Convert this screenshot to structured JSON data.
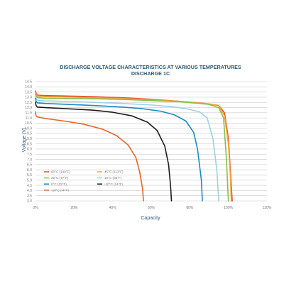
{
  "chart_data": {
    "type": "line",
    "title": "DISCHARGE VOLTAGE CHARACTERISTICS AT VARIOUS TEMPERATURES",
    "subtitle": "DISCHARGE 1C",
    "xlabel": "Capacity",
    "ylabel": "Voltage (V)",
    "xlim": [
      0,
      120
    ],
    "ylim": [
      3.0,
      14.5
    ],
    "x_ticks": [
      "0%",
      "20%",
      "40%",
      "60%",
      "80%",
      "100%",
      "120%"
    ],
    "y_ticks": [
      "3.0",
      "3.5",
      "4.0",
      "4.5",
      "5.0",
      "5.5",
      "6.0",
      "6.5",
      "7.0",
      "7.5",
      "8.0",
      "8.5",
      "9.0",
      "9.5",
      "10.0",
      "10.5",
      "11.0",
      "11.5",
      "12.0",
      "12.5",
      "13.0",
      "13.5",
      "14.0",
      "14.5"
    ],
    "grid": true,
    "legend_position": "bottom-left",
    "series": [
      {
        "name": "60°C (140°F)",
        "color": "#e74c2c",
        "x": [
          0,
          0.3,
          1,
          5,
          15,
          30,
          45,
          60,
          75,
          85,
          90,
          95,
          98,
          100,
          101,
          102
        ],
        "y": [
          13.6,
          13.4,
          13.2,
          13.15,
          13.12,
          13.05,
          12.95,
          12.8,
          12.6,
          12.45,
          12.35,
          12.2,
          11.5,
          9.0,
          6.0,
          3.0
        ]
      },
      {
        "name": "45°C (113°F)",
        "color": "#f2a33a",
        "x": [
          0,
          0.3,
          1,
          5,
          15,
          30,
          45,
          60,
          75,
          85,
          90,
          95,
          98,
          100,
          101,
          101.5
        ],
        "y": [
          13.4,
          13.3,
          13.1,
          13.05,
          13.02,
          12.95,
          12.87,
          12.75,
          12.6,
          12.45,
          12.35,
          12.2,
          11.2,
          8.5,
          5.5,
          3.0
        ]
      },
      {
        "name": "25°C (77°F)",
        "color": "#8bbf4a",
        "x": [
          0,
          0.3,
          1,
          5,
          15,
          30,
          45,
          60,
          75,
          85,
          90,
          95,
          97.5,
          99,
          100
        ],
        "y": [
          13.3,
          13.1,
          12.95,
          12.9,
          12.88,
          12.85,
          12.78,
          12.68,
          12.55,
          12.4,
          12.3,
          12.0,
          11.0,
          7.0,
          3.0
        ]
      },
      {
        "name": "10°C (50°F)",
        "color": "#9ed1e4",
        "x": [
          0,
          0.3,
          1,
          5,
          15,
          30,
          45,
          60,
          70,
          78,
          85,
          89,
          92,
          94,
          95
        ],
        "y": [
          13.1,
          12.85,
          12.7,
          12.65,
          12.6,
          12.5,
          12.4,
          12.25,
          12.1,
          11.9,
          11.6,
          11.0,
          9.0,
          6.0,
          3.0
        ]
      },
      {
        "name": "0°C (32°F)",
        "color": "#1a8bc2",
        "x": [
          0,
          0.3,
          1,
          5,
          15,
          30,
          45,
          55,
          65,
          72,
          78,
          82,
          84,
          86,
          86.5
        ],
        "y": [
          12.9,
          12.6,
          12.45,
          12.4,
          12.32,
          12.2,
          12.05,
          11.9,
          11.65,
          11.3,
          10.7,
          9.6,
          8.0,
          5.0,
          3.0
        ]
      },
      {
        "name": "-10°C (14°F)",
        "color": "#1c1c1c",
        "x": [
          0,
          0.3,
          1,
          5,
          15,
          30,
          40,
          50,
          58,
          63,
          67,
          69,
          70,
          70.5
        ],
        "y": [
          12.5,
          12.2,
          12.05,
          12.0,
          11.9,
          11.75,
          11.55,
          11.2,
          10.6,
          9.8,
          8.3,
          6.5,
          4.5,
          3.0
        ]
      },
      {
        "name": "-20°C (-4°F)",
        "color": "#e8642a",
        "x": [
          0,
          0.3,
          1,
          5,
          15,
          25,
          35,
          42,
          48,
          52,
          54,
          55.5,
          56
        ],
        "y": [
          11.6,
          11.2,
          11.1,
          10.95,
          10.7,
          10.4,
          9.9,
          9.3,
          8.4,
          7.2,
          5.8,
          4.2,
          3.0
        ]
      }
    ]
  }
}
